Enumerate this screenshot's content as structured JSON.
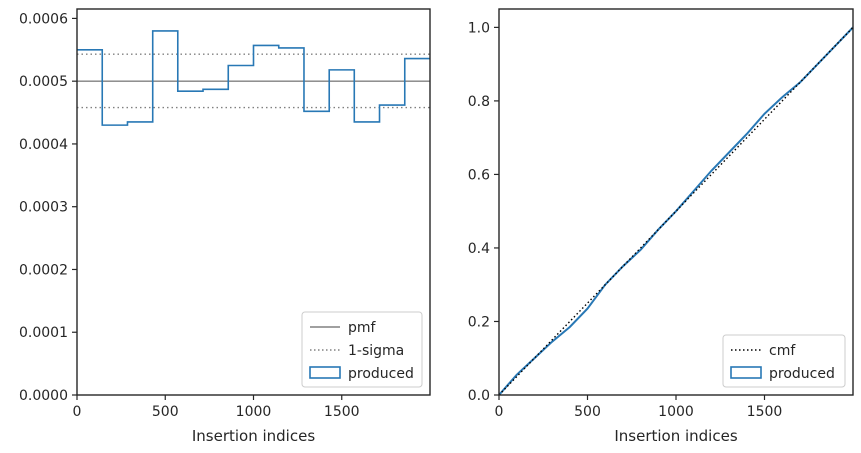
{
  "chart_data": [
    {
      "type": "histogram-step",
      "xlabel": "Insertion indices",
      "ylabel": "",
      "xlim": [
        0,
        2000
      ],
      "ylim": [
        0,
        0.000615
      ],
      "xticks": [
        0,
        500,
        1000,
        1500
      ],
      "xtick_labels": [
        "0",
        "500",
        "1000",
        "1500"
      ],
      "yticks": [
        0,
        0.0001,
        0.0002,
        0.0003,
        0.0004,
        0.0005,
        0.0006
      ],
      "ytick_labels": [
        "0.0000",
        "0.0001",
        "0.0002",
        "0.0003",
        "0.0004",
        "0.0005",
        "0.0006"
      ],
      "grid": false,
      "legend_position": "lower-right",
      "reference_lines": [
        {
          "name": "pmf",
          "y": 0.0005,
          "style": "solid",
          "color": "#808080"
        },
        {
          "name": "1-sigma",
          "y": 0.000543,
          "style": "dotted",
          "color": "#808080"
        },
        {
          "name": "",
          "y": 0.000458,
          "style": "dotted",
          "color": "#808080"
        }
      ],
      "series": [
        {
          "name": "produced",
          "color": "#2878b5",
          "bin_edges": [
            0,
            143,
            286,
            429,
            571,
            714,
            857,
            1000,
            1143,
            1286,
            1429,
            1571,
            1714,
            1857,
            2000
          ],
          "values": [
            0.00055,
            0.00043,
            0.000435,
            0.00058,
            0.000484,
            0.000487,
            0.000525,
            0.000557,
            0.000553,
            0.000452,
            0.000518,
            0.000435,
            0.000462,
            0.000536
          ]
        }
      ],
      "legend": [
        {
          "label": "pmf",
          "kind": "solid-line"
        },
        {
          "label": "1-sigma",
          "kind": "dotted-line"
        },
        {
          "label": "produced",
          "kind": "patch"
        }
      ]
    },
    {
      "type": "line",
      "xlabel": "Insertion indices",
      "ylabel": "",
      "xlim": [
        0,
        2000
      ],
      "ylim": [
        0,
        1.05
      ],
      "xticks": [
        0,
        500,
        1000,
        1500
      ],
      "xtick_labels": [
        "0",
        "500",
        "1000",
        "1500"
      ],
      "yticks": [
        0,
        0.2,
        0.4,
        0.6,
        0.8,
        1.0
      ],
      "ytick_labels": [
        "0.0",
        "0.2",
        "0.4",
        "0.6",
        "0.8",
        "1.0"
      ],
      "grid": false,
      "legend_position": "lower-right",
      "series": [
        {
          "name": "cmf",
          "style": "dotted",
          "color": "#000000",
          "x": [
            0,
            2000
          ],
          "y": [
            0,
            1
          ]
        },
        {
          "name": "produced",
          "style": "solid",
          "color": "#2878b5",
          "x": [
            0,
            100,
            200,
            300,
            400,
            500,
            600,
            700,
            800,
            900,
            1000,
            1100,
            1200,
            1300,
            1400,
            1500,
            1600,
            1700,
            1800,
            1900,
            2000
          ],
          "y": [
            0,
            0.055,
            0.1,
            0.145,
            0.185,
            0.235,
            0.3,
            0.35,
            0.395,
            0.45,
            0.5,
            0.555,
            0.61,
            0.66,
            0.71,
            0.765,
            0.81,
            0.85,
            0.9,
            0.95,
            1.0
          ]
        }
      ],
      "legend": [
        {
          "label": "cmf",
          "kind": "dotted-line"
        },
        {
          "label": "produced",
          "kind": "patch"
        }
      ]
    }
  ]
}
